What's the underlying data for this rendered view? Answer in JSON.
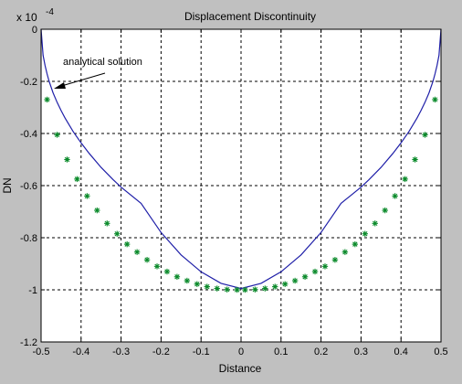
{
  "colors": {
    "figure_bg": "#c0c0c0",
    "axes_bg": "#ffffff",
    "analytical_line": "#1f1fa8",
    "numerical_markers": "#0a8a2a",
    "grid": "#000000"
  },
  "chart_data": {
    "type": "line",
    "title": "Displacement Discontinuity",
    "xlabel": "Distance",
    "ylabel": "DN",
    "exponent_label": "x 10",
    "exponent_power": "-4",
    "xlim": [
      -0.5,
      0.5
    ],
    "ylim": [
      -1.2,
      0
    ],
    "xticks": [
      -0.5,
      -0.4,
      -0.3,
      -0.2,
      -0.1,
      0,
      0.1,
      0.2,
      0.3,
      0.4,
      0.5
    ],
    "xtick_labels": [
      "-0.5",
      "-0.4",
      "-0.3",
      "-0.2",
      "-0.1",
      "0",
      "0.1",
      "0.2",
      "0.3",
      "0.4",
      "0.5"
    ],
    "yticks": [
      0,
      -0.2,
      -0.4,
      -0.6,
      -0.8,
      -1,
      -1.2
    ],
    "ytick_labels": [
      "0",
      "-0.2",
      "-0.4",
      "-0.6",
      "-0.8",
      "-1",
      "-1.2"
    ],
    "grid": true,
    "annotation": {
      "text": "analytical solution",
      "points_to": {
        "x": -0.472,
        "y": -0.225
      }
    },
    "series": [
      {
        "style": "line",
        "x": [
          -0.5,
          -0.495,
          -0.49,
          -0.485,
          -0.48,
          -0.47,
          -0.46,
          -0.45,
          -0.44,
          -0.42,
          -0.4,
          -0.38,
          -0.35,
          -0.32,
          -0.3,
          -0.25,
          -0.2,
          -0.15,
          -0.1,
          -0.05,
          0,
          0.05,
          0.1,
          0.15,
          0.2,
          0.25,
          0.3,
          0.32,
          0.35,
          0.38,
          0.4,
          0.42,
          0.44,
          0.45,
          0.46,
          0.47,
          0.48,
          0.485,
          0.49,
          0.495,
          0.5
        ],
        "y": [
          0,
          -0.1,
          -0.14,
          -0.172,
          -0.2,
          -0.244,
          -0.28,
          -0.312,
          -0.341,
          -0.392,
          -0.436,
          -0.476,
          -0.53,
          -0.577,
          -0.606,
          -0.668,
          -0.78,
          -0.866,
          -0.931,
          -0.975,
          -0.995,
          -0.975,
          -0.931,
          -0.866,
          -0.78,
          -0.668,
          -0.606,
          -0.577,
          -0.53,
          -0.476,
          -0.436,
          -0.392,
          -0.341,
          -0.312,
          -0.28,
          -0.244,
          -0.2,
          -0.172,
          -0.14,
          -0.1,
          0
        ]
      },
      {
        "style": "markers",
        "x": [
          -0.485,
          -0.46,
          -0.435,
          -0.41,
          -0.385,
          -0.36,
          -0.335,
          -0.31,
          -0.285,
          -0.26,
          -0.235,
          -0.21,
          -0.185,
          -0.16,
          -0.135,
          -0.11,
          -0.085,
          -0.06,
          -0.035,
          -0.01,
          0.01,
          0.035,
          0.06,
          0.085,
          0.11,
          0.135,
          0.16,
          0.185,
          0.21,
          0.235,
          0.26,
          0.285,
          0.31,
          0.335,
          0.36,
          0.385,
          0.41,
          0.435,
          0.46,
          0.485
        ],
        "y": [
          -0.27,
          -0.405,
          -0.5,
          -0.575,
          -0.64,
          -0.695,
          -0.745,
          -0.785,
          -0.825,
          -0.855,
          -0.885,
          -0.91,
          -0.93,
          -0.95,
          -0.965,
          -0.978,
          -0.988,
          -0.995,
          -0.999,
          -1.0,
          -1.0,
          -0.999,
          -0.995,
          -0.988,
          -0.978,
          -0.965,
          -0.95,
          -0.93,
          -0.91,
          -0.885,
          -0.855,
          -0.825,
          -0.785,
          -0.745,
          -0.695,
          -0.64,
          -0.575,
          -0.5,
          -0.405,
          -0.27
        ]
      }
    ]
  }
}
